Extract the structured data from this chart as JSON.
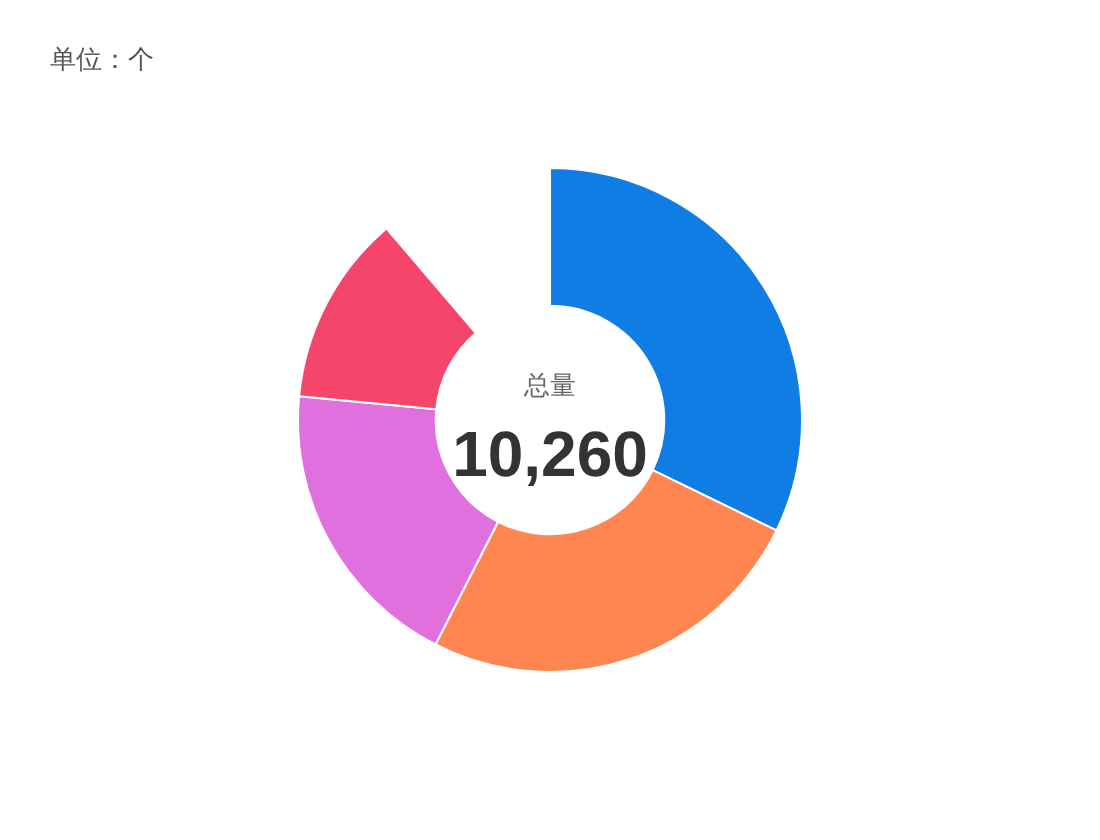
{
  "chart_data": {
    "type": "donut",
    "categories": [
      null,
      null,
      null,
      null
    ],
    "values": [
      36.3,
      28.5,
      21.4,
      13.8
    ],
    "colors": [
      "#0f7de4",
      "#ff8551",
      "#e070dd",
      "#f6456b"
    ],
    "annotations": [
      "单位：个",
      "总量",
      "10,260"
    ]
  }
}
